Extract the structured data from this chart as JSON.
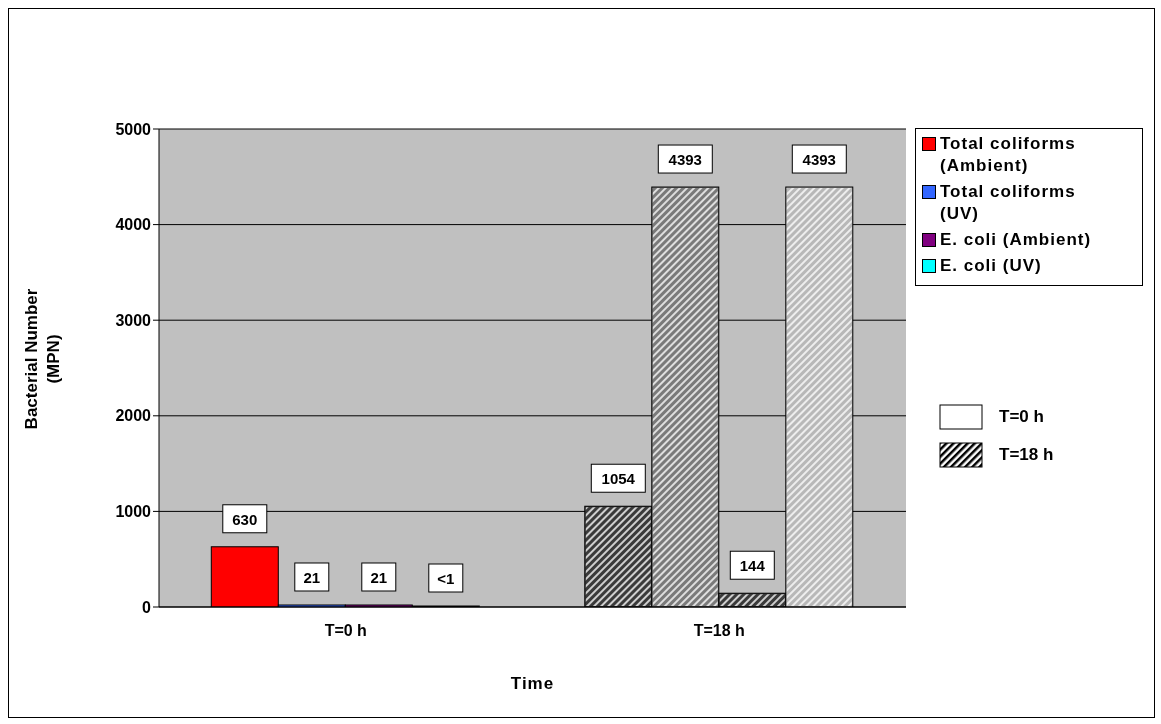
{
  "chart_data": {
    "type": "bar",
    "xlabel": "Time",
    "ylabel": "Bacterial Number\n(MPN)",
    "categories": [
      "T=0 h",
      "T=18 h"
    ],
    "series": [
      {
        "name": "Total coliforms (Ambient)",
        "color": "#ff0000",
        "colors": [
          "#ff0000",
          "#3a3a3a"
        ],
        "values": [
          630,
          1054
        ],
        "value_labels": [
          "630",
          "1054"
        ]
      },
      {
        "name": "Total coliforms (UV)",
        "color": "#3366ff",
        "colors": [
          "#3366ff",
          "#7a7a7a"
        ],
        "values": [
          21,
          4393
        ],
        "value_labels": [
          "21",
          "4393"
        ]
      },
      {
        "name": "E. coli (Ambient)",
        "color": "#800080",
        "colors": [
          "#800080",
          "#3a3a3a"
        ],
        "values": [
          21,
          144
        ],
        "value_labels": [
          "21",
          "144"
        ]
      },
      {
        "name": "E. coli (UV)",
        "color": "#00ffff",
        "colors": [
          "#00ffff",
          "#b8b8b8"
        ],
        "values": [
          0,
          4393
        ],
        "value_labels": [
          "<1",
          "4393"
        ]
      }
    ],
    "ylim": [
      0,
      5000
    ],
    "yticks": [
      0,
      1000,
      2000,
      3000,
      4000,
      5000
    ],
    "grid": "y",
    "legend": "right"
  }
}
